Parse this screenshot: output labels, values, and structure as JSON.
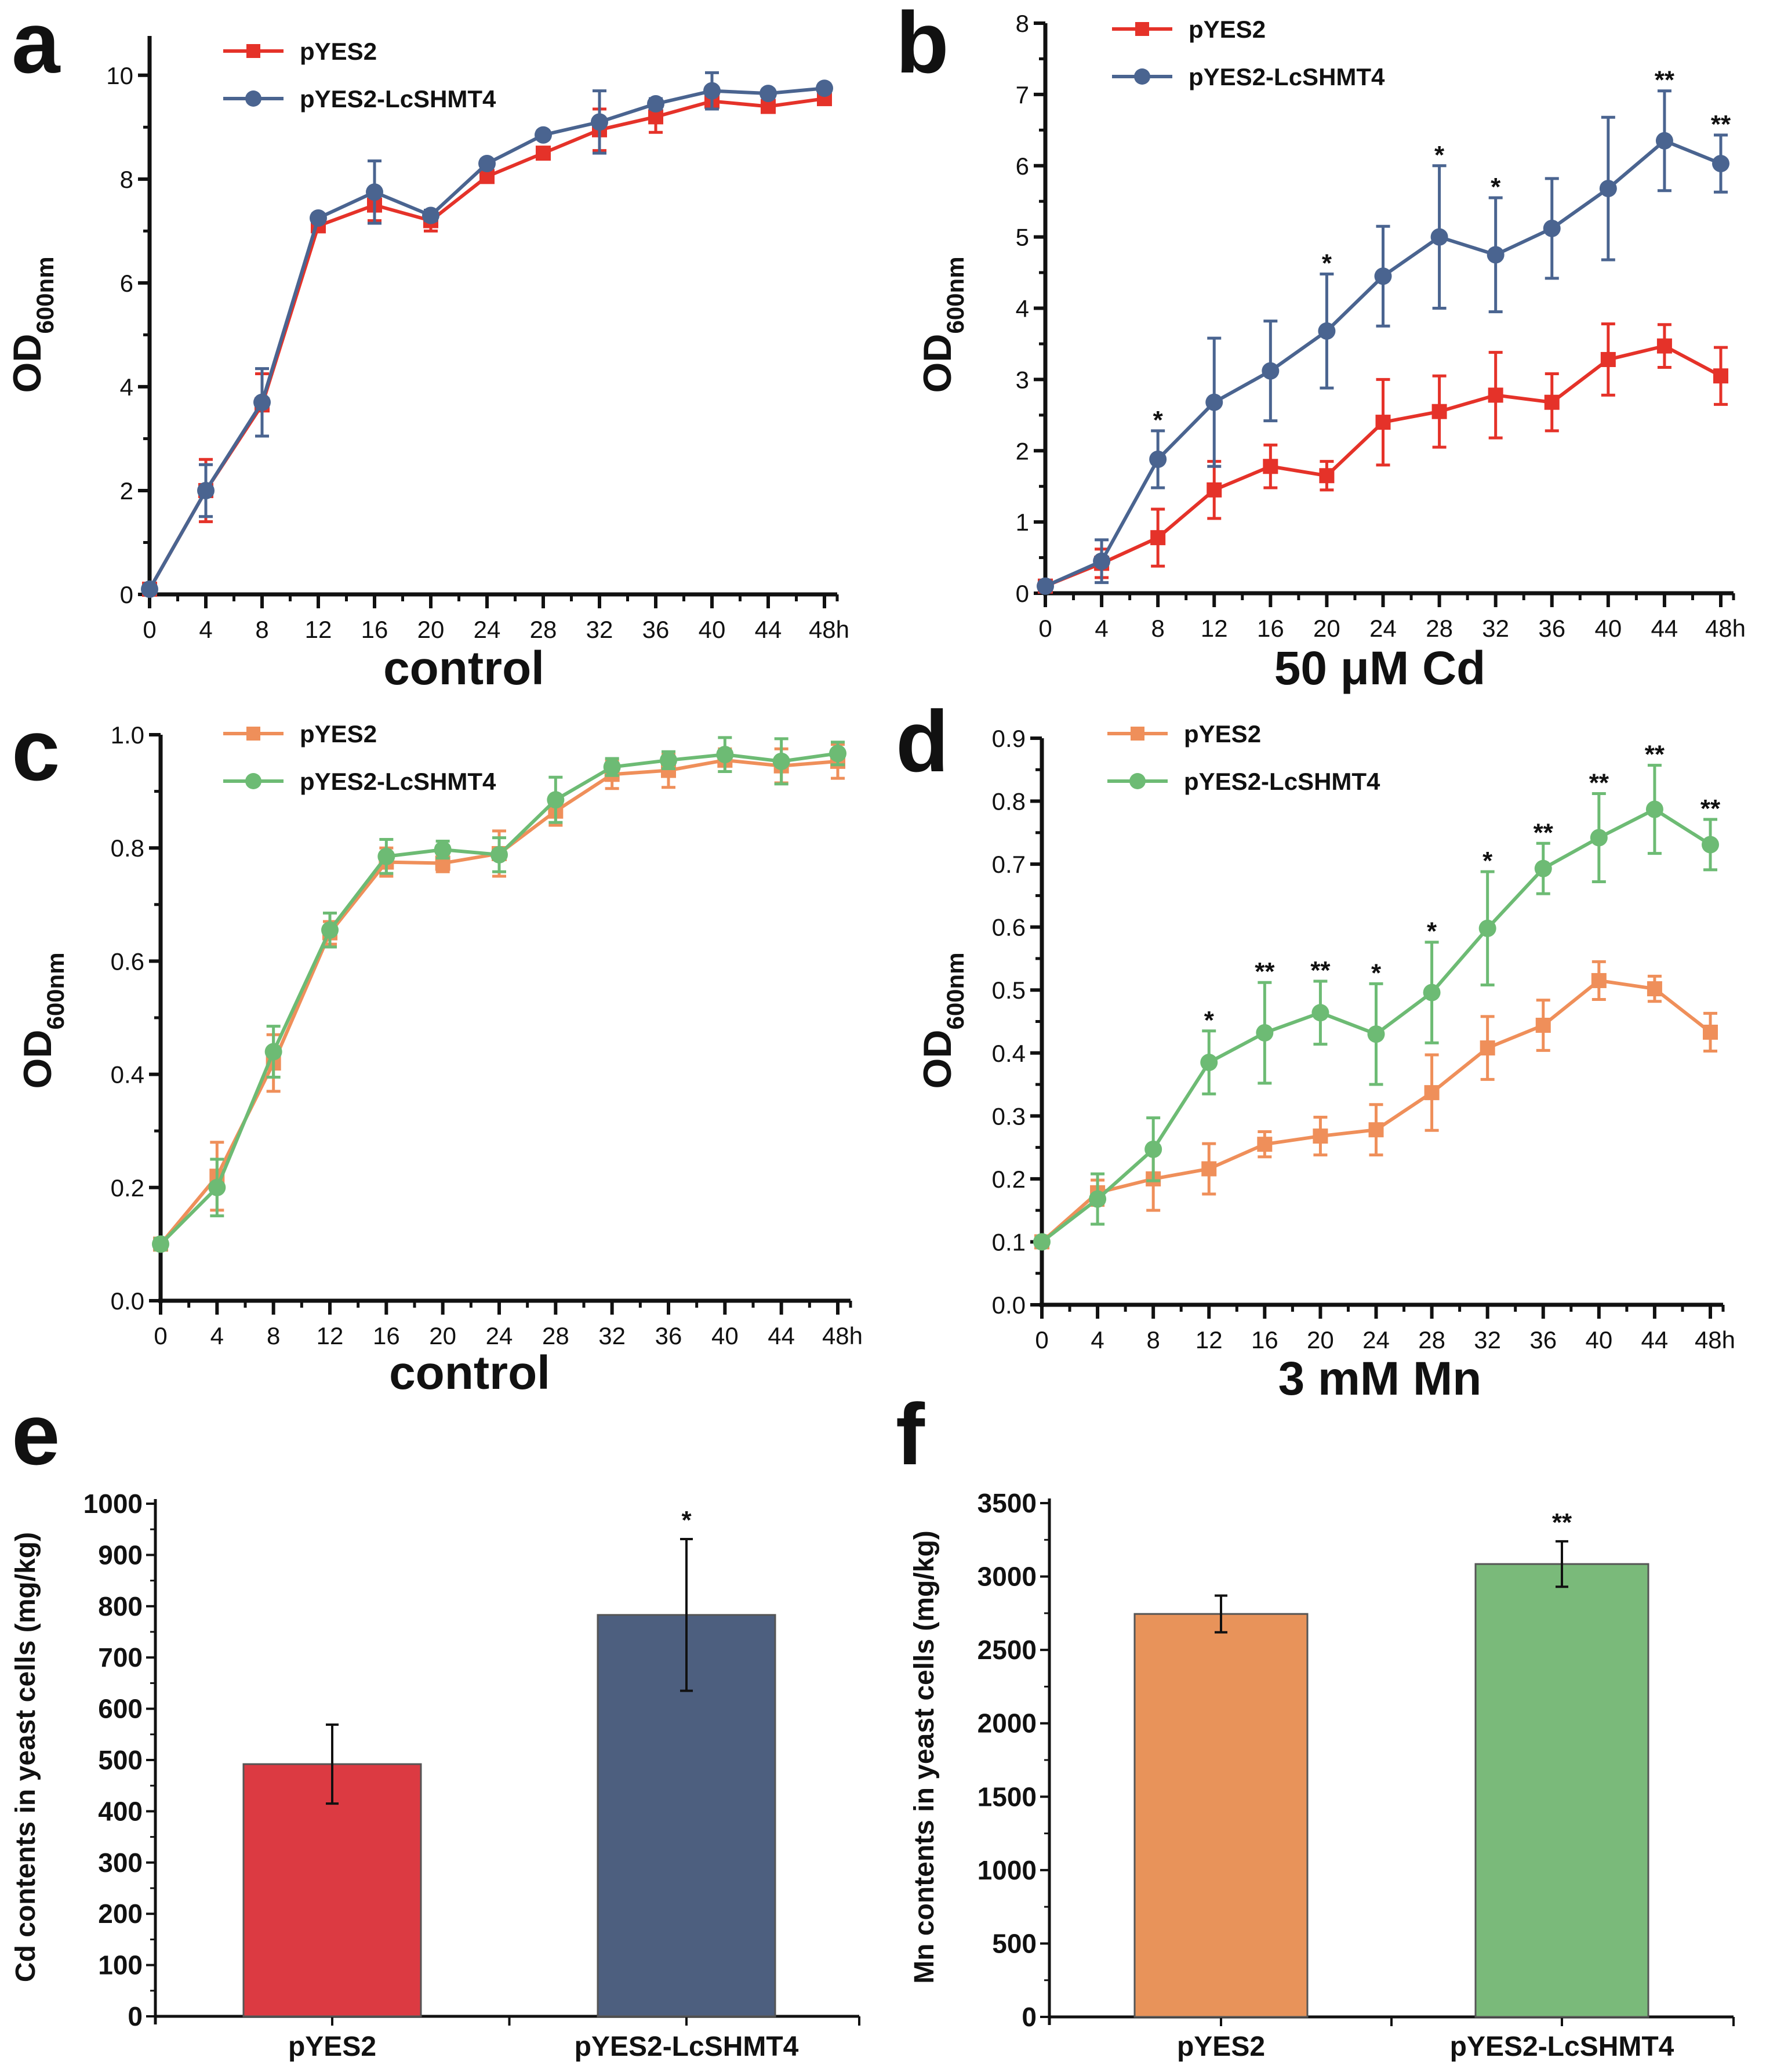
{
  "figure": {
    "panels": [
      "a",
      "b",
      "c",
      "d",
      "e",
      "f"
    ]
  },
  "chart_data": [
    {
      "panel": "a",
      "type": "line",
      "title": "",
      "xlabel": "control",
      "ylabel": "OD600nm",
      "ylabel_main": "OD",
      "ylabel_sub": "600nm",
      "x": [
        0,
        4,
        8,
        12,
        16,
        20,
        24,
        28,
        32,
        36,
        40,
        44,
        48
      ],
      "x_tick_labels": [
        "0",
        "4",
        "8",
        "12",
        "16",
        "20",
        "24",
        "28",
        "32",
        "36",
        "40",
        "44",
        "48h"
      ],
      "xlim": [
        0,
        48
      ],
      "ylim": [
        0,
        10.4
      ],
      "y_ticks": [
        0,
        2,
        4,
        6,
        8,
        10
      ],
      "y_tick_labels": [
        "0",
        "2",
        "4",
        "6",
        "8",
        "10"
      ],
      "legend_position": "top-left",
      "series": [
        {
          "name": "pYES2",
          "color": "#e53229",
          "marker": "square",
          "values": [
            0.1,
            2.0,
            3.65,
            7.1,
            7.5,
            7.2,
            8.05,
            8.5,
            8.95,
            9.2,
            9.5,
            9.4,
            9.55
          ],
          "errors": [
            0.05,
            0.6,
            0.6,
            0.1,
            0.3,
            0.2,
            0.1,
            0.1,
            0.4,
            0.3,
            0.15,
            0.1,
            0.1
          ]
        },
        {
          "name": "pYES2-LcSHMT4",
          "color": "#4a6490",
          "marker": "circle",
          "values": [
            0.1,
            2.0,
            3.7,
            7.25,
            7.75,
            7.3,
            8.3,
            8.85,
            9.1,
            9.45,
            9.7,
            9.65,
            9.75
          ],
          "errors": [
            0.05,
            0.5,
            0.65,
            0.08,
            0.6,
            0.1,
            0.08,
            0.08,
            0.6,
            0.1,
            0.35,
            0.08,
            0.08
          ]
        }
      ],
      "significance": []
    },
    {
      "panel": "b",
      "type": "line",
      "title": "",
      "xlabel": "50 μM Cd",
      "ylabel": "OD600nm",
      "ylabel_main": "OD",
      "ylabel_sub": "600nm",
      "x": [
        0,
        4,
        8,
        12,
        16,
        20,
        24,
        28,
        32,
        36,
        40,
        44,
        48
      ],
      "x_tick_labels": [
        "0",
        "4",
        "8",
        "12",
        "16",
        "20",
        "24",
        "28",
        "32",
        "36",
        "40",
        "44",
        "48h"
      ],
      "xlim": [
        0,
        48
      ],
      "ylim": [
        0,
        8
      ],
      "y_ticks": [
        0,
        1,
        2,
        3,
        4,
        5,
        6,
        7,
        8
      ],
      "y_tick_labels": [
        "0",
        "1",
        "2",
        "3",
        "4",
        "5",
        "6",
        "7",
        "8"
      ],
      "legend_position": "top-left",
      "series": [
        {
          "name": "pYES2",
          "color": "#e53229",
          "marker": "square",
          "values": [
            0.1,
            0.42,
            0.78,
            1.45,
            1.78,
            1.65,
            2.4,
            2.55,
            2.78,
            2.68,
            3.28,
            3.47,
            3.05
          ],
          "errors": [
            0.03,
            0.2,
            0.4,
            0.4,
            0.3,
            0.2,
            0.6,
            0.5,
            0.6,
            0.4,
            0.5,
            0.3,
            0.4
          ]
        },
        {
          "name": "pYES2-LcSHMT4",
          "color": "#4a6490",
          "marker": "circle",
          "values": [
            0.1,
            0.45,
            1.88,
            2.68,
            3.12,
            3.68,
            4.45,
            5.0,
            4.75,
            5.12,
            5.68,
            6.35,
            6.03
          ],
          "errors": [
            0.03,
            0.3,
            0.4,
            0.9,
            0.7,
            0.8,
            0.7,
            1.0,
            0.8,
            0.7,
            1.0,
            0.7,
            0.4
          ]
        }
      ],
      "significance": [
        {
          "x": 8,
          "label": "*"
        },
        {
          "x": 20,
          "label": "*"
        },
        {
          "x": 28,
          "label": "*"
        },
        {
          "x": 32,
          "label": "*"
        },
        {
          "x": 44,
          "label": "**"
        },
        {
          "x": 48,
          "label": "**"
        }
      ]
    },
    {
      "panel": "c",
      "type": "line",
      "title": "",
      "xlabel": "control",
      "ylabel": "OD600nm",
      "ylabel_main": "OD",
      "ylabel_sub": "600nm",
      "x": [
        0,
        4,
        8,
        12,
        16,
        20,
        24,
        28,
        32,
        36,
        40,
        44,
        48
      ],
      "x_tick_labels": [
        "0",
        "4",
        "8",
        "12",
        "16",
        "20",
        "24",
        "28",
        "32",
        "36",
        "40",
        "44",
        "48h"
      ],
      "xlim": [
        0,
        48
      ],
      "ylim": [
        0,
        1.0
      ],
      "y_ticks": [
        0.0,
        0.2,
        0.4,
        0.6,
        0.8,
        1.0
      ],
      "y_tick_labels": [
        "0.0",
        "0.2",
        "0.4",
        "0.6",
        "0.8",
        "1.0"
      ],
      "legend_position": "top-left",
      "series": [
        {
          "name": "pYES2",
          "color": "#ef8f5a",
          "marker": "square",
          "values": [
            0.1,
            0.22,
            0.42,
            0.65,
            0.775,
            0.773,
            0.79,
            0.865,
            0.93,
            0.937,
            0.955,
            0.945,
            0.953
          ],
          "errors": [
            0.01,
            0.06,
            0.05,
            0.02,
            0.025,
            0.015,
            0.04,
            0.025,
            0.025,
            0.03,
            0.02,
            0.03,
            0.03
          ]
        },
        {
          "name": "pYES2-LcSHMT4",
          "color": "#6dbb74",
          "marker": "circle",
          "values": [
            0.1,
            0.2,
            0.44,
            0.655,
            0.785,
            0.797,
            0.788,
            0.885,
            0.943,
            0.955,
            0.965,
            0.953,
            0.967
          ],
          "errors": [
            0.01,
            0.05,
            0.045,
            0.03,
            0.03,
            0.015,
            0.03,
            0.04,
            0.015,
            0.015,
            0.03,
            0.04,
            0.02
          ]
        }
      ],
      "significance": []
    },
    {
      "panel": "d",
      "type": "line",
      "title": "",
      "xlabel": "3 mM Mn",
      "ylabel": "OD600nm",
      "ylabel_main": "OD",
      "ylabel_sub": "600nm",
      "x": [
        0,
        4,
        8,
        12,
        16,
        20,
        24,
        28,
        32,
        36,
        40,
        44,
        48
      ],
      "x_tick_labels": [
        "0",
        "4",
        "8",
        "12",
        "16",
        "20",
        "24",
        "28",
        "32",
        "36",
        "40",
        "44",
        "48h"
      ],
      "xlim": [
        0,
        48
      ],
      "ylim": [
        0,
        0.9
      ],
      "y_ticks": [
        0.0,
        0.1,
        0.2,
        0.3,
        0.4,
        0.5,
        0.6,
        0.7,
        0.8,
        0.9
      ],
      "y_tick_labels": [
        "0.0",
        "0.1",
        "0.2",
        "0.3",
        "0.4",
        "0.5",
        "0.6",
        "0.7",
        "0.8",
        "0.9"
      ],
      "legend_position": "top-left",
      "series": [
        {
          "name": "pYES2",
          "color": "#ef8f5a",
          "marker": "square",
          "values": [
            0.1,
            0.178,
            0.2,
            0.216,
            0.255,
            0.268,
            0.278,
            0.337,
            0.408,
            0.444,
            0.515,
            0.502,
            0.433
          ],
          "errors": [
            0.005,
            0.02,
            0.05,
            0.04,
            0.02,
            0.03,
            0.04,
            0.06,
            0.05,
            0.04,
            0.03,
            0.02,
            0.03
          ]
        },
        {
          "name": "pYES2-LcSHMT4",
          "color": "#6dbb74",
          "marker": "circle",
          "values": [
            0.1,
            0.168,
            0.247,
            0.385,
            0.432,
            0.464,
            0.43,
            0.496,
            0.598,
            0.693,
            0.742,
            0.787,
            0.731
          ],
          "errors": [
            0.005,
            0.04,
            0.05,
            0.05,
            0.08,
            0.05,
            0.08,
            0.08,
            0.09,
            0.04,
            0.07,
            0.07,
            0.04
          ]
        }
      ],
      "significance": [
        {
          "x": 12,
          "label": "*"
        },
        {
          "x": 16,
          "label": "**"
        },
        {
          "x": 20,
          "label": "**"
        },
        {
          "x": 24,
          "label": "*"
        },
        {
          "x": 28,
          "label": "*"
        },
        {
          "x": 32,
          "label": "*"
        },
        {
          "x": 36,
          "label": "**"
        },
        {
          "x": 40,
          "label": "**"
        },
        {
          "x": 44,
          "label": "**"
        },
        {
          "x": 48,
          "label": "**"
        }
      ]
    },
    {
      "panel": "e",
      "type": "bar",
      "title": "",
      "xlabel": "",
      "ylabel": "Cd contents in yeast cells (mg/kg)",
      "categories": [
        "pYES2",
        "pYES2-LcSHMT4"
      ],
      "values": [
        492,
        783
      ],
      "errors": [
        77,
        148
      ],
      "colors": [
        "#dc3a42",
        "#4d5f7f"
      ],
      "ylim": [
        0,
        1000
      ],
      "y_ticks": [
        0,
        100,
        200,
        300,
        400,
        500,
        600,
        700,
        800,
        900,
        1000
      ],
      "y_tick_labels": [
        "0",
        "100",
        "200",
        "300",
        "400",
        "500",
        "600",
        "700",
        "800",
        "900",
        "1000"
      ],
      "significance": [
        {
          "category": 1,
          "label": "*"
        }
      ]
    },
    {
      "panel": "f",
      "type": "bar",
      "title": "",
      "xlabel": "",
      "ylabel": "Mn contents in yeast cells (mg/kg)",
      "categories": [
        "pYES2",
        "pYES2-LcSHMT4"
      ],
      "values": [
        2745,
        3085
      ],
      "errors": [
        125,
        155
      ],
      "colors": [
        "#e8935a",
        "#7aba7a"
      ],
      "ylim": [
        0,
        3500
      ],
      "y_ticks": [
        0,
        500,
        1000,
        1500,
        2000,
        2500,
        3000,
        3500
      ],
      "y_tick_labels": [
        "0",
        "500",
        "1000",
        "1500",
        "2000",
        "2500",
        "3000",
        "3500"
      ],
      "significance": [
        {
          "category": 1,
          "label": "**"
        }
      ]
    }
  ]
}
